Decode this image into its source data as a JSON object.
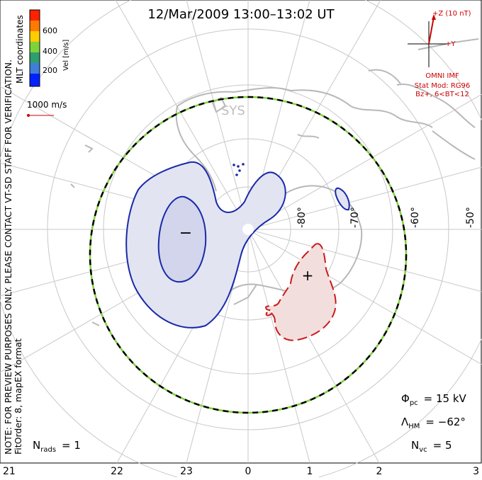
{
  "title": "12/Mar/2009  13:00–13:02  UT",
  "colorbar": {
    "axis_label": "Vel [m/s]",
    "ticks": [
      "600",
      "400",
      "200"
    ],
    "colors": [
      "#0022ff",
      "#3f7fd6",
      "#2e9e6f",
      "#7fd23a",
      "#ffcc00",
      "#ff7a00",
      "#ff2200"
    ]
  },
  "coord_label": "MLT coordinates",
  "vector_scale_label": "1000 m/s",
  "imf": {
    "z_label": "+Z (10 nT)",
    "y_label": "+Y",
    "source_label": "OMNI IMF",
    "stat_mod": "Stat Mod: RG96",
    "condition": "Bz+, 6<BT<12"
  },
  "radar_label": "SYS",
  "preview_note": "NOTE: FOR PREVIEW PURPOSES ONLY. PLEASE CONTACT VT-SD STAFF FOR VERIFICATION.",
  "fit_order": "FitOrder: 8,  mapEX format",
  "lat_labels": [
    "-80°",
    "-70°",
    "-60°",
    "-50°"
  ],
  "mlt_labels": [
    "21",
    "22",
    "23",
    "0",
    "1",
    "2",
    "3"
  ],
  "cell_signs": {
    "negative": "−",
    "positive": "+"
  },
  "phi_pc": {
    "symbol": "Φ",
    "subscript": "pc",
    "value": "= 15 kV"
  },
  "lambda_hm": {
    "symbol": "Λ",
    "subscript": "HM",
    "value": "= −62°"
  },
  "n_vc": {
    "symbol": "N",
    "subscript": "vc",
    "value": "= 5"
  },
  "n_rads": {
    "symbol": "N",
    "subscript": "rads",
    "value": "= 1"
  },
  "colors": {
    "grid": "#c8c8c8",
    "coast": "#b8b8b8",
    "negative_contour": "#1a2aa8",
    "negative_fill": "#e2e4f2",
    "positive_contour": "#cc1a1a",
    "positive_fill": "#f3dede",
    "title_text": "#000000",
    "imf_text": "#cc0000"
  }
}
